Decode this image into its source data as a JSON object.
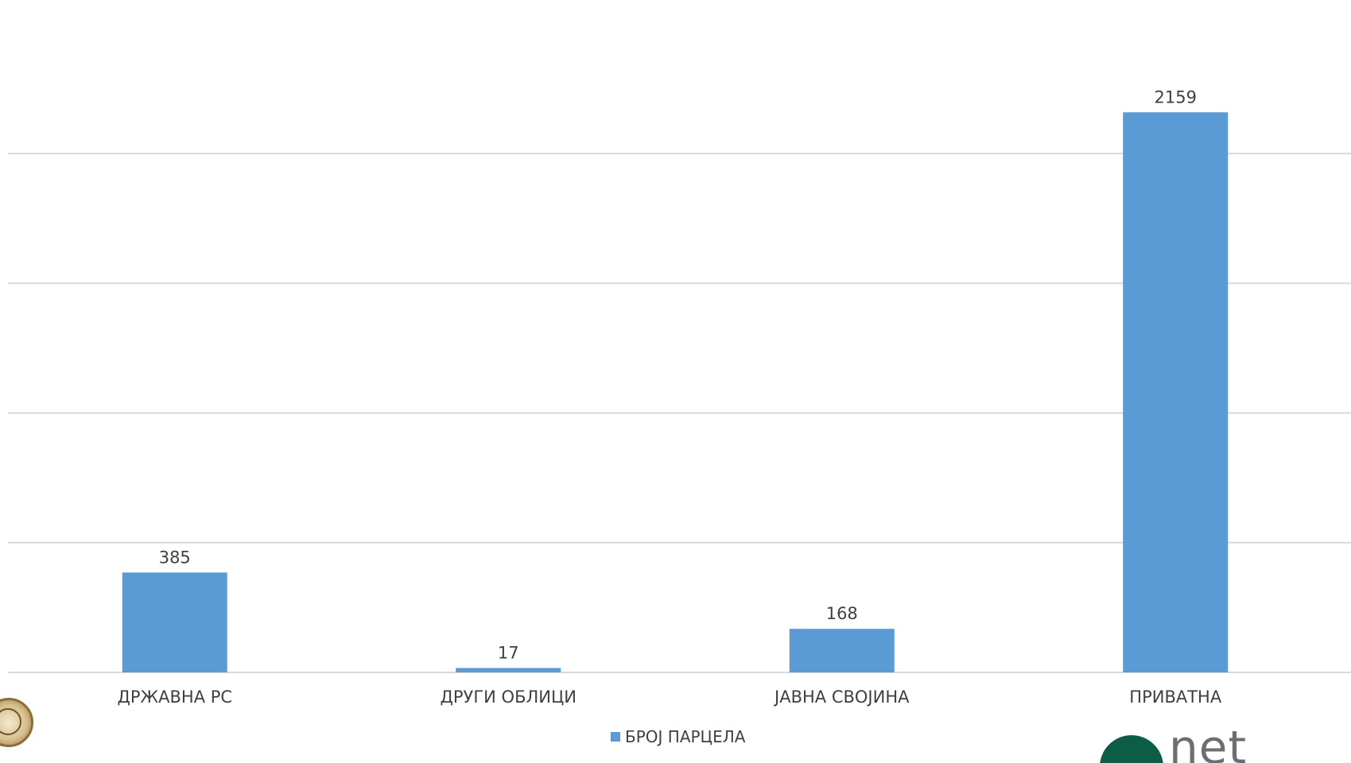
{
  "chart_data": {
    "type": "bar",
    "categories": [
      "ДРЖАВНА РС",
      "ДРУГИ ОБЛИЦИ",
      "ЈАВНА СВОЈИНА",
      "ПРИВАТНА"
    ],
    "series": [
      {
        "name": "БРОЈ ПАРЦЕЛА",
        "values": [
          385,
          17,
          168,
          2159
        ]
      }
    ],
    "ylim": [
      0,
      2500
    ],
    "gridlines": [
      0,
      500,
      1000,
      1500,
      2000
    ],
    "grid": true,
    "legend_position": "bottom",
    "colors": {
      "bar": "#5b9bd5",
      "grid": "#d9d9d9",
      "text": "#404040"
    }
  },
  "branding": {
    "seal_icon": "seal-emblem-icon",
    "logo_icon": "company-logo-icon",
    "logo_text": "net"
  }
}
